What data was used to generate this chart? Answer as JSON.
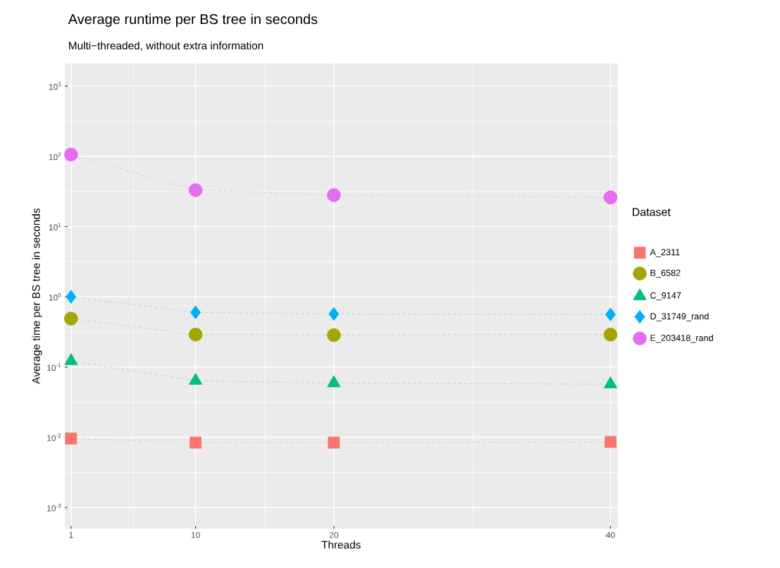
{
  "chart_data": {
    "type": "line",
    "title": "Average runtime per BS tree in seconds",
    "subtitle": "Multi−threaded, without extra information",
    "xlabel": "Threads",
    "ylabel": "Average time per BS tree in seconds",
    "legend_title": "Dataset",
    "x": [
      1,
      10,
      20,
      40
    ],
    "xlim": [
      0.55,
      40.5
    ],
    "xticks": [
      1,
      10,
      20,
      40
    ],
    "log": "y",
    "ylim": [
      0.0005,
      2100
    ],
    "yticks": [
      {
        "value": 0.001,
        "label": "10$^{-3}$"
      },
      {
        "value": 0.01,
        "label": "10$^{-2}$"
      },
      {
        "value": 0.1,
        "label": "10$^{-1}$"
      },
      {
        "value": 1,
        "label": "10$^{0}$"
      },
      {
        "value": 10,
        "label": "10$^{1}$"
      },
      {
        "value": 100,
        "label": "10$^{2}$"
      },
      {
        "value": 1000,
        "label": "10$^{3}$"
      }
    ],
    "grid": true,
    "legend": "right",
    "line_style": "dashed",
    "series": [
      {
        "name": "A_2311",
        "color": "#f8766d",
        "marker": "square",
        "values": [
          0.0096,
          0.0084,
          0.0084,
          0.0086
        ]
      },
      {
        "name": "B_6582",
        "color": "#a3a500",
        "marker": "circle",
        "values": [
          0.49,
          0.29,
          0.285,
          0.29
        ]
      },
      {
        "name": "C_9147",
        "color": "#00bf7d",
        "marker": "triangle",
        "values": [
          0.122,
          0.064,
          0.059,
          0.057
        ]
      },
      {
        "name": "D_31749_rand",
        "color": "#00b0f6",
        "marker": "diamond",
        "values": [
          1.0,
          0.6,
          0.57,
          0.56
        ]
      },
      {
        "name": "E_203418_rand",
        "color": "#e76bf3",
        "marker": "circle",
        "values": [
          106,
          33,
          28,
          26
        ]
      }
    ]
  }
}
